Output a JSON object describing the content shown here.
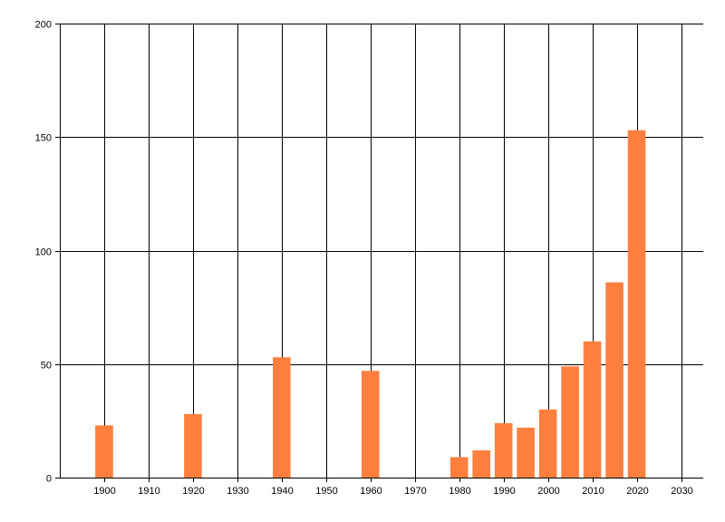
{
  "chart_data": {
    "type": "bar",
    "title": "",
    "xlabel": "",
    "ylabel": "",
    "x": [
      1900,
      1920,
      1940,
      1960,
      1980,
      1985,
      1990,
      1995,
      2000,
      2005,
      2010,
      2015,
      2020
    ],
    "values": [
      23,
      28,
      53,
      47,
      9,
      12,
      24,
      22,
      30,
      49,
      60,
      86,
      153
    ],
    "xlim": [
      1890,
      2035
    ],
    "ylim": [
      0,
      200
    ],
    "x_ticks": [
      1900,
      1910,
      1920,
      1930,
      1940,
      1950,
      1960,
      1970,
      1980,
      1990,
      2000,
      2010,
      2020,
      2030
    ],
    "y_ticks": [
      0,
      50,
      100,
      150,
      200
    ],
    "bar_width": 4,
    "grid": true,
    "legend": "none",
    "colors": {
      "bar": "#ff7f3f",
      "grid": "#000000",
      "background": "#ffffff"
    }
  }
}
